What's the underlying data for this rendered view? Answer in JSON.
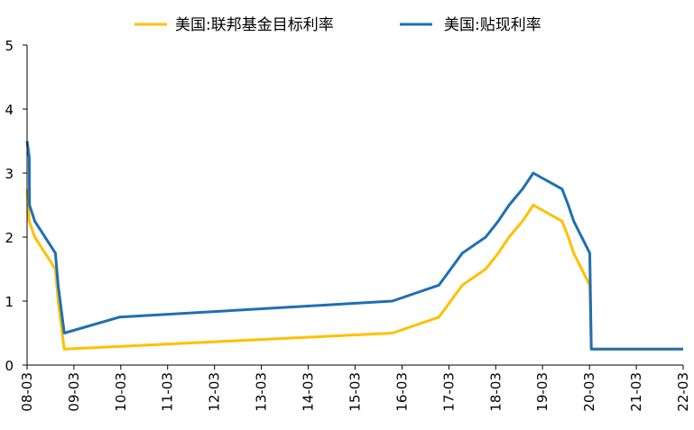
{
  "chart_data": {
    "type": "line",
    "title": "",
    "xlabel": "",
    "ylabel": "",
    "ylim": [
      0,
      5
    ],
    "yticks": [
      "0",
      "1",
      "2",
      "3",
      "4",
      "5"
    ],
    "xlim": [
      "2008-03-01",
      "2022-03-01"
    ],
    "xticks": [
      "08-03",
      "09-03",
      "10-03",
      "11-03",
      "12-03",
      "13-03",
      "14-03",
      "15-03",
      "16-03",
      "17-03",
      "18-03",
      "19-03",
      "20-03",
      "21-03",
      "22-03"
    ],
    "grid": false,
    "legend_position": "top",
    "series": [
      {
        "name": "美国:联邦基金目标利率",
        "color": "#FFC000",
        "points": [
          [
            "2008-03-01",
            2.75
          ],
          [
            "2008-03-18",
            2.25
          ],
          [
            "2008-04-30",
            2.0
          ],
          [
            "2008-10-08",
            1.5
          ],
          [
            "2008-10-29",
            1.0
          ],
          [
            "2008-12-16",
            0.25
          ],
          [
            "2015-12-16",
            0.5
          ],
          [
            "2016-12-14",
            0.75
          ],
          [
            "2017-03-15",
            1.0
          ],
          [
            "2017-06-14",
            1.25
          ],
          [
            "2017-12-13",
            1.5
          ],
          [
            "2018-03-21",
            1.75
          ],
          [
            "2018-06-13",
            2.0
          ],
          [
            "2018-09-26",
            2.25
          ],
          [
            "2018-12-19",
            2.5
          ],
          [
            "2019-07-31",
            2.25
          ],
          [
            "2019-09-18",
            2.0
          ],
          [
            "2019-10-30",
            1.75
          ],
          [
            "2020-03-03",
            1.25
          ],
          [
            "2020-03-15",
            0.25
          ],
          [
            "2022-03-01",
            0.25
          ]
        ]
      },
      {
        "name": "美国:贴现利率",
        "color": "#1F6FB4",
        "points": [
          [
            "2008-03-01",
            3.5
          ],
          [
            "2008-03-18",
            3.25
          ],
          [
            "2008-03-20",
            2.5
          ],
          [
            "2008-04-30",
            2.25
          ],
          [
            "2008-10-08",
            1.75
          ],
          [
            "2008-10-29",
            1.25
          ],
          [
            "2008-12-16",
            0.5
          ],
          [
            "2010-02-19",
            0.75
          ],
          [
            "2015-12-16",
            1.0
          ],
          [
            "2016-12-14",
            1.25
          ],
          [
            "2017-03-15",
            1.5
          ],
          [
            "2017-06-14",
            1.75
          ],
          [
            "2017-12-13",
            2.0
          ],
          [
            "2018-03-21",
            2.25
          ],
          [
            "2018-06-13",
            2.5
          ],
          [
            "2018-09-26",
            2.75
          ],
          [
            "2018-12-19",
            3.0
          ],
          [
            "2019-07-31",
            2.75
          ],
          [
            "2019-09-18",
            2.5
          ],
          [
            "2019-10-30",
            2.25
          ],
          [
            "2020-03-03",
            1.75
          ],
          [
            "2020-03-15",
            0.25
          ],
          [
            "2022-03-01",
            0.25
          ]
        ]
      }
    ]
  }
}
